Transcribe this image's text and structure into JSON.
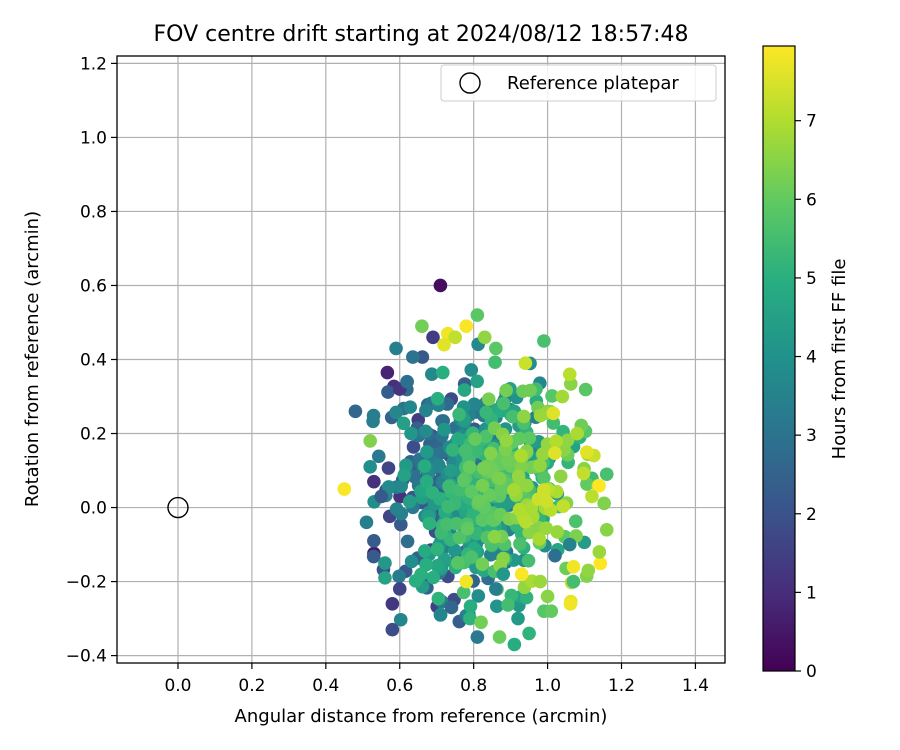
{
  "chart_data": {
    "type": "scatter",
    "title": "FOV centre drift starting at 2024/08/12 18:57:48",
    "xlabel": "Angular distance from reference (arcmin)",
    "ylabel": "Rotation from reference (arcmin)",
    "xlim": [
      -0.165,
      1.48
    ],
    "ylim": [
      -0.42,
      1.22
    ],
    "xticks": [
      "0.0",
      "0.2",
      "0.4",
      "0.6",
      "0.8",
      "1.0",
      "1.2",
      "1.4"
    ],
    "yticks": [
      "−0.4",
      "−0.2",
      "0.0",
      "0.2",
      "0.4",
      "0.6",
      "0.8",
      "1.0",
      "1.2"
    ],
    "grid": true,
    "legend": {
      "location": "upper-right",
      "entries": [
        "Reference platepar"
      ]
    },
    "reference_point": {
      "x": 0.0,
      "y": 0.0
    },
    "colorbar": {
      "label": "Hours from first FF file",
      "colormap": "viridis",
      "range": [
        0,
        7.95
      ],
      "ticks": [
        "0",
        "1",
        "2",
        "3",
        "4",
        "5",
        "6",
        "7"
      ]
    },
    "points_note": "approx. 800 points clustered around x≈0.82, y≈0.05; colour = hours",
    "points": [
      {
        "x": 0.71,
        "y": 0.6,
        "h": 0.3
      },
      {
        "x": 0.81,
        "y": 0.52,
        "h": 5.9
      },
      {
        "x": 0.66,
        "y": 0.49,
        "h": 6.2
      },
      {
        "x": 0.78,
        "y": 0.49,
        "h": 7.9
      },
      {
        "x": 0.73,
        "y": 0.47,
        "h": 7.8
      },
      {
        "x": 0.69,
        "y": 0.46,
        "h": 1.4
      },
      {
        "x": 0.75,
        "y": 0.46,
        "h": 7.2
      },
      {
        "x": 0.83,
        "y": 0.46,
        "h": 6.6
      },
      {
        "x": 0.99,
        "y": 0.45,
        "h": 5.6
      },
      {
        "x": 0.86,
        "y": 0.43,
        "h": 5.9
      },
      {
        "x": 0.59,
        "y": 0.43,
        "h": 3.4
      },
      {
        "x": 0.72,
        "y": 0.44,
        "h": 7.6
      },
      {
        "x": 0.94,
        "y": 0.39,
        "h": 7.3
      },
      {
        "x": 1.06,
        "y": 0.36,
        "h": 7.1
      },
      {
        "x": 0.48,
        "y": 0.26,
        "h": 2.6
      },
      {
        "x": 0.45,
        "y": 0.05,
        "h": 7.9
      },
      {
        "x": 0.6,
        "y": 0.32,
        "h": 1.2
      },
      {
        "x": 0.62,
        "y": 0.34,
        "h": 2.9
      },
      {
        "x": 1.04,
        "y": 0.3,
        "h": 6.8
      },
      {
        "x": 1.08,
        "y": 0.2,
        "h": 6.9
      },
      {
        "x": 1.16,
        "y": 0.09,
        "h": 5.6
      },
      {
        "x": 1.12,
        "y": 0.03,
        "h": 7.1
      },
      {
        "x": 1.16,
        "y": -0.06,
        "h": 6.5
      },
      {
        "x": 1.14,
        "y": -0.12,
        "h": 6.7
      },
      {
        "x": 0.52,
        "y": 0.18,
        "h": 6.4
      },
      {
        "x": 0.52,
        "y": 0.11,
        "h": 3.9
      },
      {
        "x": 0.53,
        "y": 0.07,
        "h": 1.1
      },
      {
        "x": 0.55,
        "y": 0.03,
        "h": 2.2
      },
      {
        "x": 0.51,
        "y": -0.04,
        "h": 3.4
      },
      {
        "x": 0.53,
        "y": -0.09,
        "h": 2.3
      },
      {
        "x": 0.56,
        "y": -0.15,
        "h": 4.2
      },
      {
        "x": 0.56,
        "y": -0.19,
        "h": 4.6
      },
      {
        "x": 0.6,
        "y": -0.22,
        "h": 1.6
      },
      {
        "x": 0.58,
        "y": -0.26,
        "h": 1.3
      },
      {
        "x": 0.58,
        "y": -0.33,
        "h": 1.8
      },
      {
        "x": 0.71,
        "y": -0.29,
        "h": 3.6
      },
      {
        "x": 0.74,
        "y": -0.27,
        "h": 2.6
      },
      {
        "x": 0.79,
        "y": -0.3,
        "h": 5.1
      },
      {
        "x": 0.82,
        "y": -0.31,
        "h": 6.2
      },
      {
        "x": 0.81,
        "y": -0.35,
        "h": 3.2
      },
      {
        "x": 0.87,
        "y": -0.35,
        "h": 6.1
      },
      {
        "x": 0.91,
        "y": -0.37,
        "h": 4.9
      },
      {
        "x": 0.95,
        "y": -0.34,
        "h": 5.1
      },
      {
        "x": 0.92,
        "y": -0.3,
        "h": 4.3
      },
      {
        "x": 0.99,
        "y": -0.28,
        "h": 5.8
      },
      {
        "x": 1.01,
        "y": -0.28,
        "h": 6.0
      },
      {
        "x": 1.0,
        "y": -0.24,
        "h": 6.5
      },
      {
        "x": 1.07,
        "y": -0.2,
        "h": 5.5
      },
      {
        "x": 1.11,
        "y": -0.17,
        "h": 6.6
      },
      {
        "x": 1.07,
        "y": -0.16,
        "h": 7.8
      },
      {
        "x": 1.06,
        "y": -0.1,
        "h": 3.5
      },
      {
        "x": 1.02,
        "y": -0.13,
        "h": 2.9
      },
      {
        "x": 0.78,
        "y": -0.2,
        "h": 7.8
      },
      {
        "x": 0.86,
        "y": -0.22,
        "h": 3.4
      },
      {
        "x": 0.88,
        "y": -0.18,
        "h": 4.2
      },
      {
        "x": 0.93,
        "y": -0.18,
        "h": 7.9
      },
      {
        "x": 0.98,
        "y": -0.2,
        "h": 6.7
      }
    ],
    "cluster": {
      "cx": 0.82,
      "cy": 0.05,
      "sx": 0.12,
      "sy": 0.14,
      "n": 700
    }
  }
}
